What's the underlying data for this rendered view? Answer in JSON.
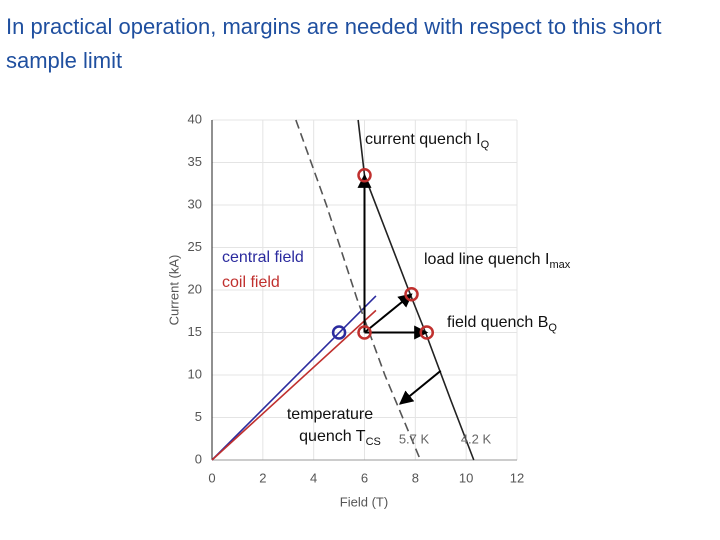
{
  "chart_data": {
    "type": "line",
    "title": "In practical operation, margins are needed with respect to this short sample limit",
    "xlabel": "Field (T)",
    "ylabel": "Current (kA)",
    "xlim": [
      0,
      12
    ],
    "ylim": [
      0,
      40
    ],
    "xticks": [
      0,
      2,
      4,
      6,
      8,
      10,
      12
    ],
    "yticks": [
      0,
      5,
      10,
      15,
      20,
      25,
      30,
      35,
      40
    ],
    "grid": true,
    "series": [
      {
        "name": "central field",
        "color": "#2b2b9e",
        "dash": false,
        "x": [
          0,
          6.45
        ],
        "values": [
          0,
          19.3
        ]
      },
      {
        "name": "coil field",
        "color": "#c0302e",
        "dash": false,
        "x": [
          0,
          6.45
        ],
        "values": [
          0,
          17.6
        ]
      },
      {
        "name": "5.7 K",
        "color": "#555555",
        "dash": true,
        "x": [
          3.3,
          4.5,
          5.7,
          6.8,
          8.2
        ],
        "values": [
          40,
          30,
          19,
          10,
          0
        ]
      },
      {
        "name": "4.2 K",
        "color": "#222222",
        "dash": false,
        "x": [
          5.75,
          6.0,
          7.8,
          8.4,
          9.4,
          10.3
        ],
        "values": [
          40,
          33.5,
          19.5,
          15,
          7,
          0
        ]
      }
    ],
    "points": {
      "x": [
        6,
        7.85,
        8.45,
        6,
        5
      ],
      "values": [
        33.5,
        19.5,
        15,
        15,
        15
      ],
      "colors": [
        "#c0302e",
        "#c0302e",
        "#c0302e",
        "#c0302e",
        "#2b2b9e"
      ]
    },
    "arrows": [
      {
        "x": [
          6,
          6
        ],
        "values": [
          15,
          33.5
        ]
      },
      {
        "x": [
          6,
          7.85
        ],
        "values": [
          15,
          19.5
        ]
      },
      {
        "x": [
          6,
          8.45
        ],
        "values": [
          15,
          15
        ]
      },
      {
        "x": [
          9.0,
          7.4
        ],
        "values": [
          10.5,
          6.6
        ]
      }
    ],
    "annotations": [
      {
        "lines": [
          "current quench I"
        ],
        "sub": "Q"
      },
      {
        "lines": [
          "load line quench I"
        ],
        "sub": "max"
      },
      {
        "lines": [
          "field quench B"
        ],
        "sub": "Q"
      },
      {
        "lines": [
          "temperature",
          "quench T"
        ],
        "sub": "CS"
      }
    ]
  }
}
